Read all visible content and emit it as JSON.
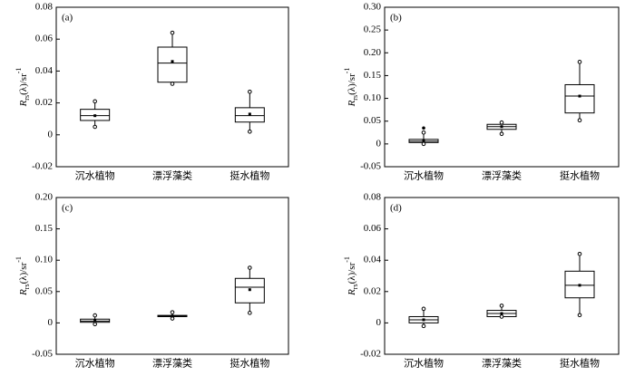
{
  "chart_data": [
    {
      "type": "box",
      "label": "(a)",
      "ylabel": {
        "base": "R",
        "sub": "rs",
        "rest": "(λ)/sr",
        "sup": "-1"
      },
      "categories": [
        "沉水植物",
        "漂浮藻类",
        "挺水植物"
      ],
      "ylim": [
        -0.02,
        0.08
      ],
      "yticks": [
        -0.02,
        0,
        0.02,
        0.04,
        0.06,
        0.08
      ],
      "boxes": [
        {
          "whislo": 0.005,
          "q1": 0.009,
          "med": 0.012,
          "q3": 0.016,
          "whishi": 0.021,
          "mean": 0.012
        },
        {
          "whislo": 0.032,
          "q1": 0.033,
          "med": 0.045,
          "q3": 0.055,
          "whishi": 0.064,
          "mean": 0.046
        },
        {
          "whislo": 0.002,
          "q1": 0.008,
          "med": 0.012,
          "q3": 0.017,
          "whishi": 0.027,
          "mean": 0.013
        }
      ]
    },
    {
      "type": "box",
      "label": "(b)",
      "ylabel": {
        "base": "R",
        "sub": "rs",
        "rest": "(λ)/sr",
        "sup": "-1"
      },
      "categories": [
        "沉水植物",
        "漂浮藻类",
        "挺水植物"
      ],
      "ylim": [
        -0.05,
        0.3
      ],
      "yticks": [
        -0.05,
        0,
        0.05,
        {
          "value": 0.1,
          "label": "0.10"
        },
        0.15,
        {
          "value": 0.2,
          "label": "0.20"
        },
        0.25,
        {
          "value": 0.3,
          "label": "0.30"
        }
      ],
      "boxes": [
        {
          "whislo": 0.0,
          "q1": 0.003,
          "med": 0.006,
          "q3": 0.01,
          "whishi": 0.025,
          "mean": 0.007,
          "fliers": [
            0.035
          ]
        },
        {
          "whislo": 0.022,
          "q1": 0.032,
          "med": 0.038,
          "q3": 0.043,
          "whishi": 0.047,
          "mean": 0.038
        },
        {
          "whislo": 0.052,
          "q1": 0.068,
          "med": 0.105,
          "q3": 0.13,
          "whishi": 0.18,
          "mean": 0.105
        }
      ]
    },
    {
      "type": "box",
      "label": "(c)",
      "ylabel": {
        "base": "R",
        "sub": "rs",
        "rest": "(λ)/sr",
        "sup": "-1"
      },
      "categories": [
        "沉水植物",
        "漂浮藻类",
        "挺水植物"
      ],
      "ylim": [
        -0.05,
        0.2
      ],
      "yticks": [
        -0.05,
        0,
        0.05,
        {
          "value": 0.1,
          "label": "0.10"
        },
        0.15,
        {
          "value": 0.2,
          "label": "0.20"
        }
      ],
      "boxes": [
        {
          "whislo": -0.002,
          "q1": 0.001,
          "med": 0.003,
          "q3": 0.006,
          "whishi": 0.012,
          "mean": 0.004
        },
        {
          "whislo": 0.007,
          "q1": 0.01,
          "med": 0.011,
          "q3": 0.012,
          "whishi": 0.017,
          "mean": 0.011
        },
        {
          "whislo": 0.016,
          "q1": 0.032,
          "med": 0.057,
          "q3": 0.071,
          "whishi": 0.088,
          "mean": 0.053
        }
      ]
    },
    {
      "type": "box",
      "label": "(d)",
      "ylabel": {
        "base": "R",
        "sub": "rs",
        "rest": "(λ)/sr",
        "sup": "-1"
      },
      "categories": [
        "沉水植物",
        "漂浮藻类",
        "挺水植物"
      ],
      "ylim": [
        -0.02,
        0.08
      ],
      "yticks": [
        -0.02,
        0,
        0.02,
        0.04,
        0.06,
        0.08
      ],
      "boxes": [
        {
          "whislo": -0.002,
          "q1": 0.0,
          "med": 0.002,
          "q3": 0.004,
          "whishi": 0.009,
          "mean": 0.002
        },
        {
          "whislo": 0.004,
          "q1": 0.004,
          "med": 0.006,
          "q3": 0.008,
          "whishi": 0.011,
          "mean": 0.006
        },
        {
          "whislo": 0.005,
          "q1": 0.016,
          "med": 0.024,
          "q3": 0.033,
          "whishi": 0.044,
          "mean": 0.024
        }
      ]
    }
  ]
}
